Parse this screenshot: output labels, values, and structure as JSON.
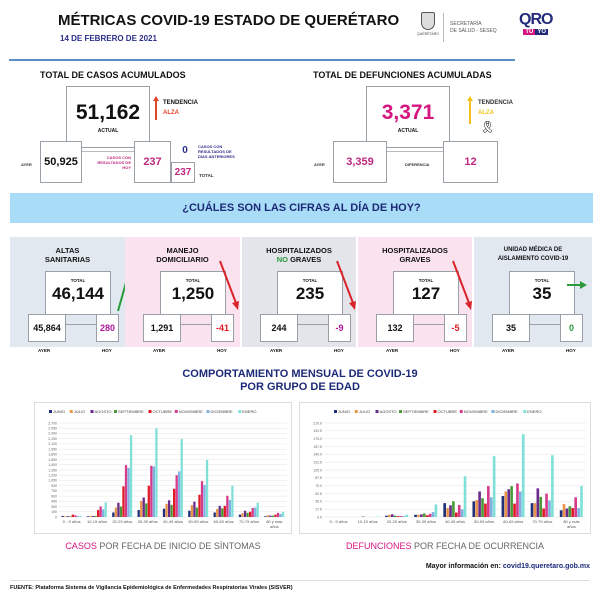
{
  "header": {
    "title": "MÉTRICAS COVID-19 ESTADO DE QUERÉTARO",
    "date": "14 DE FEBRERO DE 2021",
    "seal_caption": "QUERÉTARO",
    "secretaria": "SECRETARÍA",
    "secretaria2": "DE SALUD - SESEQ",
    "logo_qro": "QRO",
    "logo_tu": "TÚ",
    "logo_yo": "YO"
  },
  "casos": {
    "title": "TOTAL DE CASOS ACUMULADOS",
    "actual": "51,162",
    "actual_label": "ACTUAL",
    "tendencia": "TENDENCIA",
    "tendencia_value": "ALZA",
    "ayer_label": "AYER",
    "ayer": "50,925",
    "hoy_label": "CASOS CON RESULTADOS DE HOY",
    "hoy": "237",
    "anteriores": "0",
    "anteriores_label": "CASOS CON RESULTADOS DE DÍAS ANTERIORES",
    "total": "237",
    "total_label": "TOTAL"
  },
  "defunciones": {
    "title": "TOTAL DE DEFUNCIONES ACUMULADAS",
    "actual": "3,371",
    "actual_label": "ACTUAL",
    "tendencia": "TENDENCIA",
    "tendencia_value": "ALZA",
    "ayer_label": "AYER",
    "ayer": "3,359",
    "diferencia_label": "DIFERENCIA",
    "diferencia": "12"
  },
  "banner": "¿CUÁLES SON LAS CIFRAS AL DÍA DE HOY?",
  "cards": [
    {
      "title1": "ALTAS",
      "title2": "SANITARIAS",
      "total_label": "TOTAL",
      "total": "46,144",
      "ayer": "45,864",
      "hoy": "280",
      "ayer_label": "AYER",
      "hoy_label": "HOY",
      "trend": "up",
      "hoy_color": "#b0179a"
    },
    {
      "title1": "MANEJO",
      "title2": "DOMICILIARIO",
      "total_label": "TOTAL",
      "total": "1,250",
      "ayer": "1,291",
      "hoy": "-41",
      "ayer_label": "AYER",
      "hoy_label": "HOY",
      "trend": "down",
      "hoy_color": "#e01b24"
    },
    {
      "title1": "HOSPITALIZADOS",
      "title2a": "NO",
      "title2": " GRAVES",
      "total_label": "TOTAL",
      "total": "235",
      "ayer": "244",
      "hoy": "-9",
      "ayer_label": "AYER",
      "hoy_label": "HOY",
      "trend": "down",
      "hoy_color": "#b0179a"
    },
    {
      "title1": "HOSPITALIZADOS",
      "title2": "GRAVES",
      "total_label": "TOTAL",
      "total": "127",
      "ayer": "132",
      "hoy": "-5",
      "ayer_label": "AYER",
      "hoy_label": "HOY",
      "trend": "down",
      "hoy_color": "#e01b24"
    },
    {
      "title1": "UNIDAD MÉDICA DE",
      "title2": "AISLAMIENTO COVID-19",
      "total_label": "TOTAL",
      "total": "35",
      "ayer": "35",
      "hoy": "0",
      "ayer_label": "AYER",
      "hoy_label": "HOY",
      "trend": "flat",
      "hoy_color": "#2a9a3a"
    }
  ],
  "charts_title1": "COMPORTAMIENTO MENSUAL DE COVID-19",
  "charts_title2": "POR GRUPO DE EDAD",
  "chart_data": [
    {
      "type": "bar",
      "caption_a": "CASOS",
      "caption_b": " POR FECHA DE INICIO DE SÍNTOMAS",
      "legend": "top",
      "categories": [
        "0 - 9 años",
        "10-19 años",
        "20-29 años",
        "30-39 años",
        "40-49 años",
        "50-59 años",
        "60-69 años",
        "70-79 años",
        "80 y mas años"
      ],
      "ylim": [
        0,
        2700
      ],
      "ystep": 150,
      "grid": true,
      "series": [
        {
          "name": "JUNIO",
          "color": "#1f2f7a",
          "values": [
            30,
            20,
            130,
            200,
            240,
            180,
            130,
            70,
            20
          ]
        },
        {
          "name": "JULIO",
          "color": "#e8954a",
          "values": [
            20,
            30,
            270,
            460,
            380,
            340,
            230,
            110,
            50
          ]
        },
        {
          "name": "AGOSTO",
          "color": "#6a2a8c",
          "values": [
            25,
            30,
            410,
            560,
            480,
            440,
            320,
            180,
            40
          ]
        },
        {
          "name": "SEPTIEMBRE",
          "color": "#4a9a3a",
          "values": [
            20,
            30,
            300,
            390,
            350,
            270,
            250,
            120,
            40
          ]
        },
        {
          "name": "OCTUBRE",
          "color": "#e01b24",
          "values": [
            70,
            200,
            880,
            900,
            810,
            640,
            320,
            150,
            70
          ]
        },
        {
          "name": "NOVIEMBRE",
          "color": "#d63a8a",
          "values": [
            50,
            300,
            1490,
            1470,
            1200,
            1030,
            610,
            260,
            120
          ]
        },
        {
          "name": "DICIEMBRE",
          "color": "#7fb0e0",
          "values": [
            30,
            220,
            1410,
            1450,
            1310,
            920,
            490,
            270,
            90
          ]
        },
        {
          "name": "ENERO",
          "color": "#7fe0d8",
          "values": [
            30,
            420,
            2350,
            2550,
            2240,
            1640,
            900,
            410,
            150
          ]
        }
      ]
    },
    {
      "type": "bar",
      "caption_a": "DEFUNCIONES",
      "caption_b": " POR FECHA DE OCURRENCIA",
      "legend": "top",
      "categories": [
        "0 - 9 años",
        "10-19 años",
        "20-29 años",
        "30-39 años",
        "40-49 años",
        "50-59 años",
        "60-69 años",
        "70-79 años",
        "80 y más años"
      ],
      "ylim": [
        0,
        210
      ],
      "ystep": 17.5,
      "grid": true,
      "series": [
        {
          "name": "JUNIO",
          "color": "#1f2f7a",
          "values": [
            0,
            0,
            3,
            5,
            31,
            35,
            47,
            31,
            15
          ]
        },
        {
          "name": "JULIO",
          "color": "#e8954a",
          "values": [
            0,
            0,
            5,
            5,
            20,
            38,
            57,
            31,
            29
          ]
        },
        {
          "name": "AGOSTO",
          "color": "#6a2a8c",
          "values": [
            0,
            1,
            6,
            6,
            26,
            57,
            62,
            64,
            19
          ]
        },
        {
          "name": "SEPTIEMBRE",
          "color": "#4a9a3a",
          "values": [
            0,
            0,
            3,
            8,
            35,
            42,
            69,
            45,
            24
          ]
        },
        {
          "name": "OCTUBRE",
          "color": "#e01b24",
          "values": [
            0,
            0,
            2,
            4,
            10,
            30,
            30,
            19,
            20
          ]
        },
        {
          "name": "NOVIEMBRE",
          "color": "#d63a8a",
          "values": [
            0,
            0,
            2,
            7,
            27,
            69,
            75,
            52,
            44
          ]
        },
        {
          "name": "DICIEMBRE",
          "color": "#7fb0e0",
          "values": [
            0,
            0,
            2,
            11,
            17,
            44,
            57,
            37,
            20
          ]
        },
        {
          "name": "ENERO",
          "color": "#7fe0d8",
          "values": [
            0,
            1,
            5,
            28,
            91,
            136,
            185,
            138,
            69
          ]
        }
      ]
    }
  ],
  "footer": {
    "mas_info": "Mayor información en:",
    "url": "covid19.queretaro.gob.mx",
    "fuente_label": "FUENTE:",
    "fuente": " Plataforma Sistema  de Vigilancia Epidemiológica de Enfermedades Respiratorias Virales (SISVER)"
  }
}
